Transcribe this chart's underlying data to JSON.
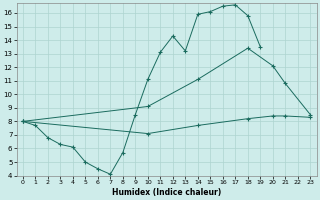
{
  "xlabel": "Humidex (Indice chaleur)",
  "bg_color": "#ceecea",
  "grid_color": "#aed4d0",
  "line_color": "#1a6b5e",
  "xlim": [
    -0.5,
    23.5
  ],
  "ylim": [
    4,
    16.7
  ],
  "xticks": [
    0,
    1,
    2,
    3,
    4,
    5,
    6,
    7,
    8,
    9,
    10,
    11,
    12,
    13,
    14,
    15,
    16,
    17,
    18,
    19,
    20,
    21,
    22,
    23
  ],
  "yticks": [
    4,
    5,
    6,
    7,
    8,
    9,
    10,
    11,
    12,
    13,
    14,
    15,
    16
  ],
  "line1_x": [
    0,
    1,
    2,
    3,
    4,
    5,
    6,
    7,
    8,
    9,
    10,
    11,
    12,
    13,
    14,
    15,
    16,
    17,
    18,
    19,
    20,
    21,
    22,
    23
  ],
  "line1_y": [
    8.0,
    7.7,
    6.8,
    6.3,
    6.1,
    5.0,
    4.5,
    4.1,
    5.7,
    8.5,
    11.1,
    13.1,
    14.3,
    13.2,
    15.9,
    16.1,
    16.5,
    16.6,
    15.8,
    13.5,
    null,
    null,
    null,
    null
  ],
  "line2_x": [
    0,
    1,
    2,
    3,
    4,
    5,
    6,
    7,
    8,
    9,
    10,
    11,
    12,
    13,
    14,
    15,
    16,
    17,
    18,
    19,
    20,
    21,
    22,
    23
  ],
  "line2_y": [
    8.0,
    null,
    null,
    null,
    null,
    null,
    null,
    null,
    null,
    null,
    9.1,
    null,
    null,
    null,
    11.1,
    null,
    null,
    null,
    13.4,
    null,
    12.1,
    10.8,
    null,
    8.5
  ],
  "line3_x": [
    0,
    1,
    2,
    3,
    4,
    5,
    6,
    7,
    8,
    9,
    10,
    11,
    12,
    13,
    14,
    15,
    16,
    17,
    18,
    19,
    20,
    21,
    22,
    23
  ],
  "line3_y": [
    8.0,
    null,
    null,
    null,
    null,
    null,
    null,
    null,
    null,
    null,
    7.1,
    null,
    null,
    null,
    7.7,
    null,
    null,
    null,
    8.2,
    null,
    8.4,
    8.4,
    null,
    8.3
  ]
}
